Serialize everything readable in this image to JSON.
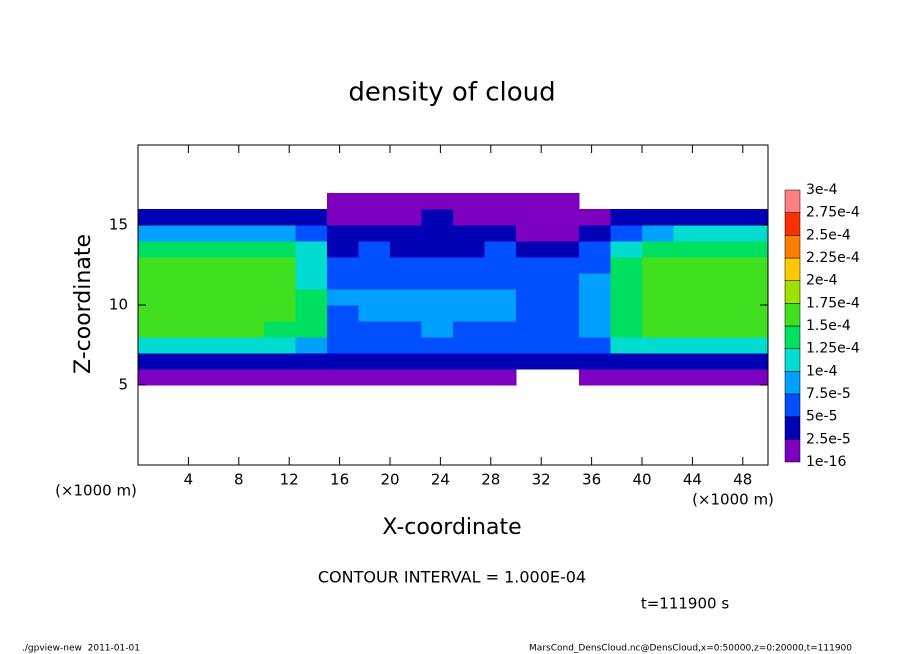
{
  "chart_data": {
    "type": "heatmap",
    "title": "density of cloud",
    "x_label": "X-coordinate",
    "y_label": "Z-coordinate",
    "x_unit": "(×1000 m)",
    "y_unit": "(×1000 m)",
    "annotation": "CONTOUR INTERVAL = 1.000E-04",
    "time_label": "t=111900 s",
    "footer_left": "./gpview-new  2011-01-01",
    "footer_right": "MarsCond_DensCloud.nc@DensCloud,x=0:50000,z=0:20000,t=111900",
    "xlim": [
      0,
      50
    ],
    "xticks": [
      4,
      8,
      12,
      16,
      20,
      24,
      28,
      32,
      36,
      40,
      44,
      48
    ],
    "ylim": [
      0,
      20
    ],
    "yticks": [
      5,
      10,
      15
    ],
    "x": [
      1.25,
      3.75,
      6.25,
      8.75,
      11.25,
      13.75,
      16.25,
      18.75,
      21.25,
      23.75,
      26.25,
      28.75,
      31.25,
      33.75,
      36.25,
      38.75,
      41.25,
      43.75,
      46.25,
      48.75
    ],
    "z": [
      5.5,
      6.5,
      7.5,
      8.5,
      9.5,
      10.5,
      11.5,
      12.5,
      13.5,
      14.5,
      15.5,
      16.5
    ],
    "values": [
      [
        1e-05,
        1e-05,
        1e-05,
        1e-05,
        1e-05,
        1e-05,
        1e-05,
        1e-05,
        1e-05,
        1e-05,
        1e-05,
        1e-05,
        null,
        null,
        1e-05,
        1e-05,
        1e-05,
        1e-05,
        1e-05,
        1e-05
      ],
      [
        4e-05,
        4e-05,
        4e-05,
        4e-05,
        4e-05,
        3e-05,
        3e-05,
        4e-05,
        4e-05,
        4e-05,
        4e-05,
        4e-05,
        3e-05,
        3e-05,
        3e-05,
        4e-05,
        4e-05,
        4e-05,
        4e-05,
        4e-05
      ],
      [
        0.00011,
        0.00011,
        0.00011,
        0.00011,
        0.00011,
        9e-05,
        6e-05,
        6e-05,
        6e-05,
        6e-05,
        6e-05,
        6e-05,
        5e-05,
        5e-05,
        6e-05,
        0.00011,
        0.00011,
        0.00011,
        0.00011,
        0.00011
      ],
      [
        0.00015,
        0.00015,
        0.00015,
        0.00015,
        0.000145,
        0.00013,
        6e-05,
        7e-05,
        7e-05,
        8e-05,
        7e-05,
        7e-05,
        6e-05,
        6e-05,
        8e-05,
        0.00014,
        0.00015,
        0.00015,
        0.00015,
        0.00015
      ],
      [
        0.000155,
        0.000155,
        0.00015,
        0.00015,
        0.00015,
        0.00013,
        7e-05,
        9e-05,
        8e-05,
        9e-05,
        9e-05,
        8e-05,
        6e-05,
        6e-05,
        9e-05,
        0.000145,
        0.000155,
        0.000155,
        0.00015,
        0.00015
      ],
      [
        0.00016,
        0.00016,
        0.000155,
        0.00015,
        0.00015,
        0.00013,
        8e-05,
        9e-05,
        9e-05,
        8e-05,
        8e-05,
        8e-05,
        6e-05,
        6e-05,
        9e-05,
        0.000145,
        0.000155,
        0.00016,
        0.00016,
        0.000155
      ],
      [
        0.00016,
        0.00016,
        0.00016,
        0.000155,
        0.00015,
        0.00012,
        6e-05,
        7e-05,
        7e-05,
        6e-05,
        7e-05,
        6e-05,
        6e-05,
        6e-05,
        8e-05,
        0.00014,
        0.000155,
        0.00016,
        0.00016,
        0.00016
      ],
      [
        0.00015,
        0.000155,
        0.00016,
        0.000155,
        0.00015,
        0.00011,
        5e-05,
        6e-05,
        5e-05,
        5e-05,
        6e-05,
        6e-05,
        5e-05,
        5e-05,
        6e-05,
        0.00013,
        0.00015,
        0.000155,
        0.000155,
        0.00015
      ],
      [
        0.00013,
        0.00014,
        0.000145,
        0.00014,
        0.000135,
        0.0001,
        4e-05,
        5e-05,
        4e-05,
        3e-05,
        4e-05,
        5e-05,
        4e-05,
        4e-05,
        5e-05,
        0.00011,
        0.000135,
        0.00014,
        0.00014,
        0.00013
      ],
      [
        9e-05,
        9e-05,
        9e-05,
        9e-05,
        8e-05,
        6e-05,
        3e-05,
        4e-05,
        3e-05,
        3e-05,
        3e-05,
        4e-05,
        2e-05,
        2e-05,
        4e-05,
        6e-05,
        9e-05,
        0.0001,
        0.0001,
        0.0001
      ],
      [
        4e-05,
        4e-05,
        4e-05,
        3e-05,
        3e-05,
        3e-05,
        1e-05,
        2e-05,
        1e-05,
        3e-05,
        2e-05,
        1e-05,
        1e-05,
        1e-05,
        1e-05,
        3e-05,
        4e-05,
        4e-05,
        4e-05,
        4e-05
      ],
      [
        null,
        null,
        null,
        null,
        null,
        null,
        1e-05,
        1e-05,
        1e-05,
        1e-05,
        1e-05,
        1e-05,
        1e-05,
        1e-05,
        null,
        null,
        null,
        null,
        null,
        null
      ]
    ],
    "colorbar": {
      "levels": [
        {
          "value": 1e-16,
          "label": "1e-16"
        },
        {
          "value": 2.5e-05,
          "label": "2.5e-5"
        },
        {
          "value": 5e-05,
          "label": "5e-5"
        },
        {
          "value": 7.5e-05,
          "label": "7.5e-5"
        },
        {
          "value": 0.0001,
          "label": "1e-4"
        },
        {
          "value": 0.000125,
          "label": "1.25e-4"
        },
        {
          "value": 0.00015,
          "label": "1.5e-4"
        },
        {
          "value": 0.000175,
          "label": "1.75e-4"
        },
        {
          "value": 0.0002,
          "label": "2e-4"
        },
        {
          "value": 0.000225,
          "label": "2.25e-4"
        },
        {
          "value": 0.00025,
          "label": "2.5e-4"
        },
        {
          "value": 0.000275,
          "label": "2.75e-4"
        },
        {
          "value": 0.0003,
          "label": "3e-4"
        }
      ],
      "colors": [
        "#7d00c0",
        "#0000b4",
        "#0050ff",
        "#00a0ff",
        "#00dcd0",
        "#00e060",
        "#40e020",
        "#a0e000",
        "#ffc800",
        "#ff8000",
        "#ff3000",
        "#ff8080"
      ]
    }
  }
}
